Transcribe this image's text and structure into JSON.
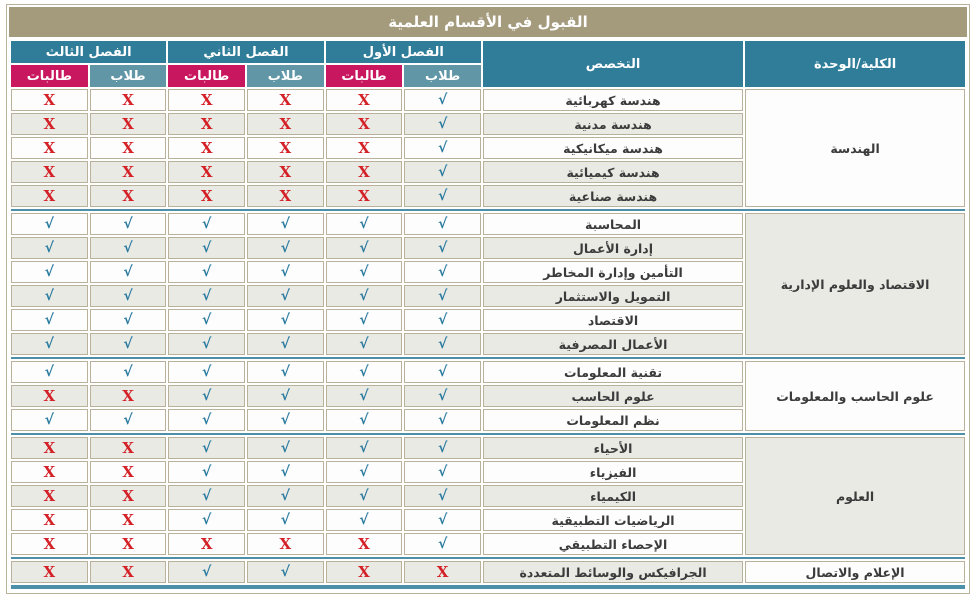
{
  "title": "القبول في الأقسام العلمية",
  "header": {
    "college": "الكلية/الوحدة",
    "major": "التخصص",
    "semesters": [
      "الفصل الأول",
      "الفصل الثاني",
      "الفصل الثالث"
    ],
    "male_label": "طلاب",
    "female_label": "طالبات"
  },
  "marks": {
    "yes": "√",
    "no": "X"
  },
  "colors": {
    "title_bg": "#a49a7c",
    "header_bg": "#2f7d99",
    "male_bg": "#6096a6",
    "female_bg": "#c9175f",
    "check": "#2b7ca0",
    "cross": "#d32127",
    "row_alt_bg": "#eaeae5",
    "grid_border": "#b9b199",
    "group_divider": "#4c8fa9"
  },
  "value_order": [
    "sem1_male",
    "sem1_female",
    "sem2_male",
    "sem2_female",
    "sem3_male",
    "sem3_female"
  ],
  "groups": [
    {
      "college": "الهندسة",
      "college_shade": "white",
      "rows": [
        {
          "major": "هندسة كهربائية",
          "shade": "white",
          "values": [
            "yes",
            "no",
            "no",
            "no",
            "no",
            "no"
          ]
        },
        {
          "major": "هندسة مدنية",
          "shade": "gray",
          "values": [
            "yes",
            "no",
            "no",
            "no",
            "no",
            "no"
          ]
        },
        {
          "major": "هندسة ميكانيكية",
          "shade": "white",
          "values": [
            "yes",
            "no",
            "no",
            "no",
            "no",
            "no"
          ]
        },
        {
          "major": "هندسة كيميائية",
          "shade": "gray",
          "values": [
            "yes",
            "no",
            "no",
            "no",
            "no",
            "no"
          ]
        },
        {
          "major": "هندسة صناعية",
          "shade": "gray",
          "values": [
            "yes",
            "no",
            "no",
            "no",
            "no",
            "no"
          ]
        }
      ]
    },
    {
      "college": "الاقتصاد والعلوم الإدارية",
      "college_shade": "gray",
      "rows": [
        {
          "major": "المحاسبة",
          "shade": "white",
          "values": [
            "yes",
            "yes",
            "yes",
            "yes",
            "yes",
            "yes"
          ]
        },
        {
          "major": "إدارة الأعمال",
          "shade": "gray",
          "values": [
            "yes",
            "yes",
            "yes",
            "yes",
            "yes",
            "yes"
          ]
        },
        {
          "major": "التأمين وإدارة المخاطر",
          "shade": "white",
          "values": [
            "yes",
            "yes",
            "yes",
            "yes",
            "yes",
            "yes"
          ]
        },
        {
          "major": "التمويل والاستثمار",
          "shade": "gray",
          "values": [
            "yes",
            "yes",
            "yes",
            "yes",
            "yes",
            "yes"
          ]
        },
        {
          "major": "الاقتصاد",
          "shade": "white",
          "values": [
            "yes",
            "yes",
            "yes",
            "yes",
            "yes",
            "yes"
          ]
        },
        {
          "major": "الأعمال المصرفية",
          "shade": "gray",
          "values": [
            "yes",
            "yes",
            "yes",
            "yes",
            "yes",
            "yes"
          ]
        }
      ]
    },
    {
      "college": "علوم الحاسب والمعلومات",
      "college_shade": "white",
      "rows": [
        {
          "major": "تقنية المعلومات",
          "shade": "white",
          "values": [
            "yes",
            "yes",
            "yes",
            "yes",
            "yes",
            "yes"
          ]
        },
        {
          "major": "علوم الحاسب",
          "shade": "gray",
          "values": [
            "yes",
            "yes",
            "yes",
            "yes",
            "no",
            "no"
          ]
        },
        {
          "major": "نظم المعلومات",
          "shade": "white",
          "values": [
            "yes",
            "yes",
            "yes",
            "yes",
            "yes",
            "yes"
          ]
        }
      ]
    },
    {
      "college": "العلوم",
      "college_shade": "gray",
      "rows": [
        {
          "major": "الأحياء",
          "shade": "gray",
          "values": [
            "yes",
            "yes",
            "yes",
            "yes",
            "no",
            "no"
          ]
        },
        {
          "major": "الفيزياء",
          "shade": "white",
          "values": [
            "yes",
            "yes",
            "yes",
            "yes",
            "no",
            "no"
          ]
        },
        {
          "major": "الكيمياء",
          "shade": "gray",
          "values": [
            "yes",
            "yes",
            "yes",
            "yes",
            "no",
            "no"
          ]
        },
        {
          "major": "الرياضيات التطبيقية",
          "shade": "white",
          "values": [
            "yes",
            "yes",
            "yes",
            "yes",
            "no",
            "no"
          ]
        },
        {
          "major": "الإحصاء التطبيقي",
          "shade": "white",
          "values": [
            "yes",
            "no",
            "no",
            "no",
            "no",
            "no"
          ]
        }
      ]
    },
    {
      "college": "الإعلام والاتصال",
      "college_shade": "white",
      "rows": [
        {
          "major": "الجرافيكس والوسائط المتعددة",
          "shade": "gray",
          "values": [
            "no",
            "no",
            "yes",
            "yes",
            "no",
            "no"
          ]
        }
      ]
    }
  ]
}
